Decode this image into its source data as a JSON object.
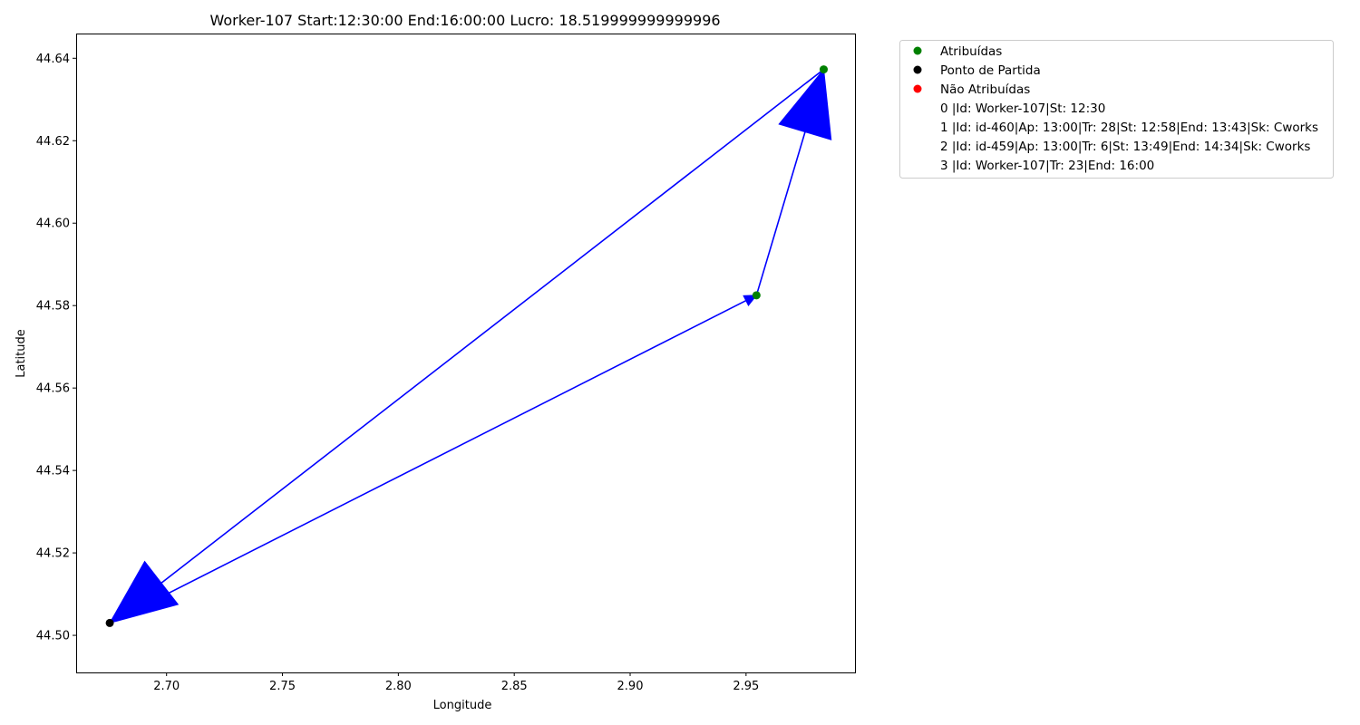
{
  "chart_data": {
    "type": "scatter",
    "title": "Worker-107 Start:12:30:00 End:16:00:00 Lucro: 18.519999999999996",
    "xlabel": "Longitude",
    "ylabel": "Latitude",
    "xlim": [
      2.661,
      2.997
    ],
    "ylim": [
      44.491,
      44.646
    ],
    "xticks": [
      "2.70",
      "2.75",
      "2.80",
      "2.85",
      "2.90",
      "2.95"
    ],
    "yticks": [
      "44.50",
      "44.52",
      "44.54",
      "44.56",
      "44.58",
      "44.60",
      "44.62",
      "44.64"
    ],
    "legend_position": "outside top-right",
    "series": [
      {
        "name": "Atribuídas",
        "color": "#008000",
        "points": [
          [
            2.9545,
            44.5825
          ],
          [
            2.9835,
            44.6373
          ]
        ]
      },
      {
        "name": "Ponto de Partida",
        "color": "#000000",
        "points": [
          [
            2.6755,
            44.503
          ]
        ]
      },
      {
        "name": "Não Atribuídas",
        "color": "#ff0000",
        "points": []
      }
    ],
    "route": {
      "color": "#0000ff",
      "arrows": [
        {
          "from": [
            2.6755,
            44.503
          ],
          "to": [
            2.9545,
            44.5825
          ],
          "head": "small"
        },
        {
          "from": [
            2.9545,
            44.5825
          ],
          "to": [
            2.9835,
            44.6373
          ],
          "head": "large"
        },
        {
          "from": [
            2.9835,
            44.6373
          ],
          "to": [
            2.6755,
            44.503
          ],
          "head": "large"
        }
      ]
    },
    "legend_text_entries": [
      "0 |Id: Worker-107|St: 12:30",
      "1 |Id: id-460|Ap: 13:00|Tr: 28|St: 12:58|End: 13:43|Sk: Cworks",
      "2 |Id: id-459|Ap: 13:00|Tr: 6|St: 13:49|End: 14:34|Sk: Cworks",
      "3 |Id: Worker-107|Tr: 23|End: 16:00"
    ]
  }
}
